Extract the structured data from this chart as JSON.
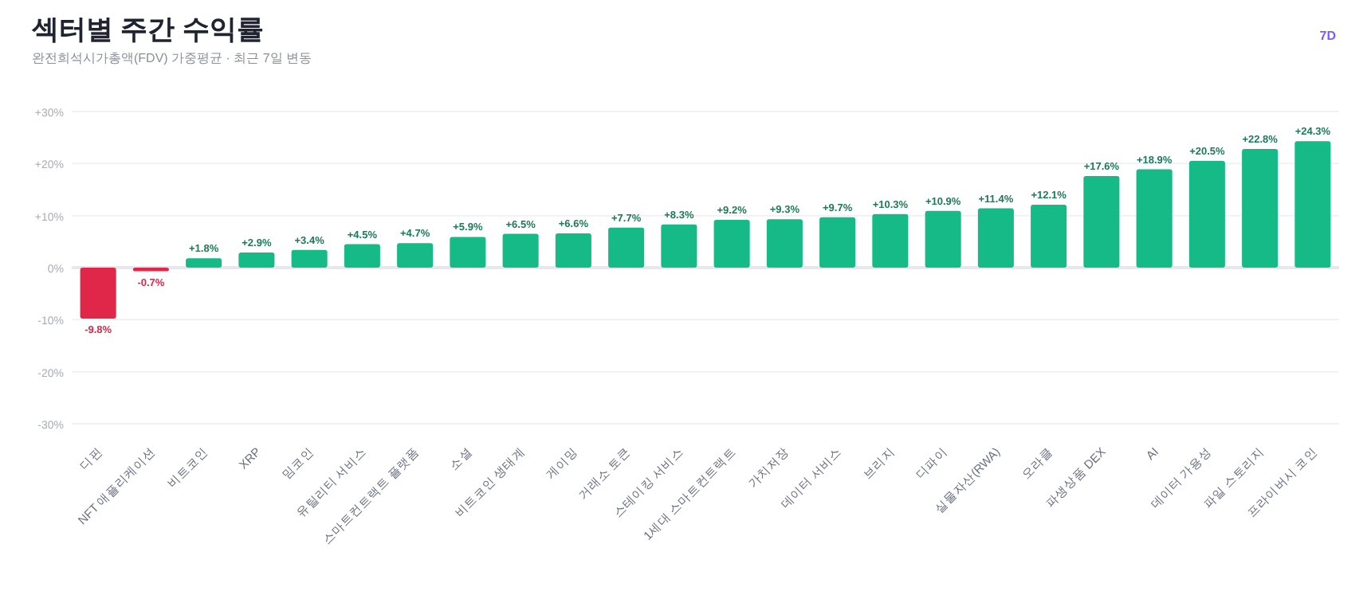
{
  "chart_data": {
    "type": "bar",
    "title": "섹터별 주간 수익률",
    "subtitle": "완전희석시가총액(FDV) 가중평균 · 최근 7일 변동",
    "annotations": [
      "7D"
    ],
    "categories": [
      "디핀",
      "NFT 애플리케이션",
      "비트코인",
      "XRP",
      "밈코인",
      "유틸리티 서비스",
      "스마트컨트랙트 플랫폼",
      "소셜",
      "비트코인 생태계",
      "게이밍",
      "거래소 토큰",
      "스테이킹 서비스",
      "1세대 스마트컨트랙트",
      "가치저장",
      "데이터 서비스",
      "브리지",
      "디파이",
      "실물자산(RWA)",
      "오라클",
      "파생상품 DEX",
      "AI",
      "데이터 가용성",
      "파일 스토리지",
      "프라이버시 코인"
    ],
    "values": [
      -9.8,
      -0.7,
      1.8,
      2.9,
      3.4,
      4.5,
      4.7,
      5.9,
      6.5,
      6.6,
      7.7,
      8.3,
      9.2,
      9.3,
      9.7,
      10.3,
      10.9,
      11.4,
      12.1,
      17.6,
      18.9,
      20.5,
      22.8,
      24.3
    ],
    "value_labels": [
      "-9.8%",
      "-0.7%",
      "+1.8%",
      "+2.9%",
      "+3.4%",
      "+4.5%",
      "+4.7%",
      "+5.9%",
      "+6.5%",
      "+6.6%",
      "+7.7%",
      "+8.3%",
      "+9.2%",
      "+9.3%",
      "+9.7%",
      "+10.3%",
      "+10.9%",
      "+11.4%",
      "+12.1%",
      "+17.6%",
      "+18.9%",
      "+20.5%",
      "+22.8%",
      "+24.3%"
    ],
    "colors": [
      "#e0274a",
      "#e0274a",
      "#16ba86",
      "#16ba86",
      "#16ba86",
      "#16ba86",
      "#16ba86",
      "#16ba86",
      "#16ba86",
      "#16ba86",
      "#16ba86",
      "#16ba86",
      "#16ba86",
      "#16ba86",
      "#16ba86",
      "#16ba86",
      "#16ba86",
      "#16ba86",
      "#16ba86",
      "#16ba86",
      "#16ba86",
      "#16ba86",
      "#16ba86",
      "#16ba86"
    ],
    "ylim": [
      -30,
      30
    ],
    "yticks": [
      {
        "value": -30,
        "label": "-30%"
      },
      {
        "value": -20,
        "label": "-20%"
      },
      {
        "value": -10,
        "label": "-10%"
      },
      {
        "value": 0,
        "label": "0%"
      },
      {
        "value": 10,
        "label": "+10%"
      },
      {
        "value": 20,
        "label": "+20%"
      },
      {
        "value": 30,
        "label": "+30%"
      }
    ],
    "grid": "y"
  }
}
